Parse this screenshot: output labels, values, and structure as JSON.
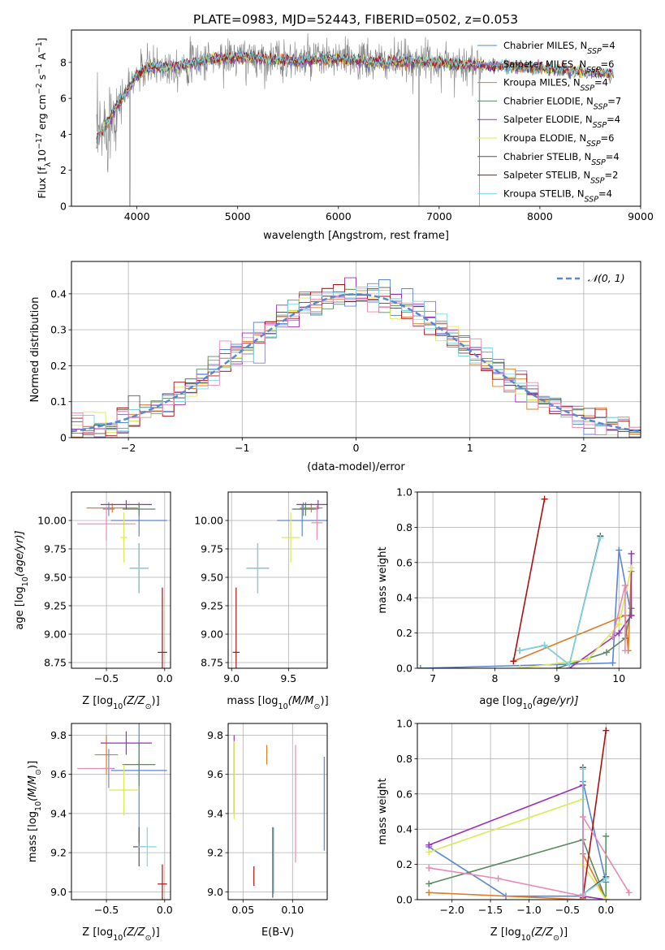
{
  "figure": {
    "title": "PLATE=0983, MJD=52443, FIBERID=0502, z=0.053"
  },
  "colors": {
    "Chabrier MILES": "#5b86d4",
    "Salpeter MILES": "#8b7fc8",
    "Kroupa MILES": "#e07b24",
    "Chabrier ELODIE": "#5a8a60",
    "Salpeter ELODIE": "#9a30b5",
    "Kroupa ELODIE": "#d9ea55",
    "Chabrier STELIB": "#555555",
    "Salpeter STELIB": "#aa1111",
    "Kroupa STELIB": "#7ed7e0",
    "data": "#808080",
    "extra_pink": "#e88ab6",
    "gauss": "#5b86d4"
  },
  "chart_data": [
    {
      "id": "spectrum",
      "type": "line",
      "xlabel": "wavelength [Angstrom, rest frame]",
      "ylabel_prefix": "Flux [f",
      "ylabel_sub": "λ",
      "ylabel_mid": "10",
      "ylabel_sup1": "−17",
      "ylabel_tail": " erg cm",
      "ylabel_sup2": "−2",
      "ylabel_tail2": " s",
      "ylabel_sup3": "−1",
      "ylabel_tail3": " A",
      "ylabel_sup4": "−1",
      "ylabel_end": "]",
      "xlim": [
        3350,
        9000
      ],
      "ylim": [
        0,
        9.8
      ],
      "xticks": [
        4000,
        5000,
        6000,
        7000,
        8000,
        9000
      ],
      "yticks": [
        0,
        2,
        4,
        6,
        8
      ],
      "legend": [
        {
          "name": "Chabrier MILES",
          "nssp": "4"
        },
        {
          "name": "Salpeter MILES",
          "nssp": "6"
        },
        {
          "name": "Kroupa MILES",
          "nssp": "4"
        },
        {
          "name": "Chabrier ELODIE",
          "nssp": "7"
        },
        {
          "name": "Salpeter ELODIE",
          "nssp": "4"
        },
        {
          "name": "Kroupa ELODIE",
          "nssp": "6"
        },
        {
          "name": "Chabrier STELIB",
          "nssp": "4"
        },
        {
          "name": "Salpeter STELIB",
          "nssp": "2"
        },
        {
          "name": "Kroupa STELIB",
          "nssp": "4"
        }
      ],
      "legend_sub": "SSP",
      "legend_placement": "right",
      "continuum": {
        "x": [
          3600,
          3700,
          3800,
          3900,
          4000,
          4100,
          4300,
          4500,
          4700,
          5000,
          5300,
          5600,
          6000,
          6400,
          6800,
          7000,
          7300,
          7600,
          8000,
          8400,
          8700
        ],
        "y": [
          3.7,
          4.6,
          5.6,
          6.4,
          7.3,
          7.7,
          7.8,
          7.9,
          8.2,
          8.3,
          8.2,
          8.1,
          8.2,
          8.0,
          8.1,
          8.0,
          7.9,
          7.8,
          7.7,
          7.5,
          7.4
        ]
      },
      "data_xrange": [
        3600,
        7420
      ],
      "model_xrange": [
        3600,
        8730
      ]
    },
    {
      "id": "residuals",
      "type": "histogram",
      "xlabel": "(data-model)/error",
      "ylabel": "Normed distribution",
      "xlim": [
        -2.5,
        2.5
      ],
      "ylim": [
        0,
        0.49
      ],
      "xticks": [
        -2,
        -1,
        0,
        1,
        2
      ],
      "xtick_labels": [
        "−2",
        "−1",
        "0",
        "1",
        "2"
      ],
      "yticks": [
        0.0,
        0.1,
        0.2,
        0.3,
        0.4
      ],
      "legend": "𝒩(0, 1)",
      "legend_placement": "top-right",
      "bins": 50
    },
    {
      "id": "age_vs_Z",
      "type": "errorbar",
      "xlabel_main": "Z [log",
      "xlabel_sub": "10",
      "xlabel_arg": "(Z/Z",
      "xlabel_sun": "⊙",
      "xlabel_end": ")]",
      "ylabel_main": "age  [log",
      "ylabel_sub": "10",
      "ylabel_arg": "(age/yr)]",
      "xlim": [
        -0.8,
        0.05
      ],
      "ylim": [
        8.7,
        10.25
      ],
      "xticks": [
        -0.5,
        0.0
      ],
      "xtick_labels": [
        "−0.5",
        "0.0"
      ],
      "yticks": [
        8.75,
        9.0,
        9.25,
        9.5,
        9.75,
        10.0
      ],
      "ytick_labels": [
        "8.75",
        "9.00",
        "9.25",
        "9.50",
        "9.75",
        "10.00"
      ],
      "points": [
        {
          "series": "Chabrier MILES",
          "x": -0.22,
          "xerr": 0.24,
          "y": 10.0,
          "yerr": 0.14
        },
        {
          "series": "Salpeter MILES",
          "x": -0.48,
          "xerr": 0.05,
          "y": 10.1,
          "yerr": 0.06
        },
        {
          "series": "Kroupa MILES",
          "x": -0.45,
          "xerr": 0.22,
          "y": 10.11,
          "yerr": 0.04
        },
        {
          "series": "Chabrier ELODIE",
          "x": -0.22,
          "xerr": 0.14,
          "y": 10.1,
          "yerr": 0.06
        },
        {
          "series": "Salpeter ELODIE",
          "x": -0.33,
          "xerr": 0.22,
          "y": 10.14,
          "yerr": 0.04
        },
        {
          "series": "Kroupa ELODIE",
          "x": -0.35,
          "xerr": 0.03,
          "y": 9.85,
          "yerr": 0.22
        },
        {
          "series": "Chabrier STELIB",
          "x": -0.22,
          "xerr": 0.08,
          "y": 9.58,
          "yerr": 0.22
        },
        {
          "series": "Salpeter STELIB",
          "x": -0.02,
          "xerr": 0.04,
          "y": 8.84,
          "yerr": 0.57
        },
        {
          "series": "Kroupa STELIB",
          "x": -0.22,
          "xerr": 0.08,
          "y": 9.58,
          "yerr": 0.22
        },
        {
          "series": "extra_pink",
          "x": -0.5,
          "xerr": 0.25,
          "y": 9.97,
          "yerr": 0.15
        }
      ]
    },
    {
      "id": "age_vs_mass",
      "type": "errorbar",
      "xlabel_main": "mass [log",
      "xlabel_sub": "10",
      "xlabel_arg": "(M/M",
      "xlabel_sun": "⊙",
      "xlabel_end": ")]",
      "xlim": [
        8.97,
        9.84
      ],
      "ylim": [
        8.7,
        10.25
      ],
      "xticks": [
        9.0,
        9.5
      ],
      "xtick_labels": [
        "9.0",
        "9.5"
      ],
      "yticks": [
        8.75,
        9.0,
        9.25,
        9.5,
        9.75,
        10.0
      ],
      "ytick_labels": [
        "8.75",
        "9.00",
        "9.25",
        "9.50",
        "9.75",
        "10.00"
      ],
      "points": [
        {
          "series": "Chabrier MILES",
          "x": 9.62,
          "xerr": 0.22,
          "y": 10.0,
          "yerr": 0.14
        },
        {
          "series": "Salpeter MILES",
          "x": 9.63,
          "xerr": 0.1,
          "y": 10.1,
          "yerr": 0.06
        },
        {
          "series": "Kroupa MILES",
          "x": 9.7,
          "xerr": 0.1,
          "y": 10.11,
          "yerr": 0.04
        },
        {
          "series": "Chabrier ELODIE",
          "x": 9.65,
          "xerr": 0.11,
          "y": 10.1,
          "yerr": 0.06
        },
        {
          "series": "Salpeter ELODIE",
          "x": 9.76,
          "xerr": 0.19,
          "y": 10.14,
          "yerr": 0.04
        },
        {
          "series": "Kroupa ELODIE",
          "x": 9.52,
          "xerr": 0.08,
          "y": 9.85,
          "yerr": 0.22
        },
        {
          "series": "Chabrier STELIB",
          "x": 9.23,
          "xerr": 0.1,
          "y": 9.58,
          "yerr": 0.22
        },
        {
          "series": "Salpeter STELIB",
          "x": 9.04,
          "xerr": 0.03,
          "y": 8.84,
          "yerr": 0.57
        },
        {
          "series": "Kroupa STELIB",
          "x": 9.23,
          "xerr": 0.1,
          "y": 9.58,
          "yerr": 0.22
        },
        {
          "series": "extra_pink",
          "x": 9.75,
          "xerr": 0.05,
          "y": 9.98,
          "yerr": 0.15
        }
      ]
    },
    {
      "id": "mass_weight_vs_age",
      "type": "line",
      "xlabel_main": "age  [log",
      "xlabel_sub": "10",
      "xlabel_arg": "(age/yr)]",
      "ylabel": "mass weight",
      "xlim": [
        6.75,
        10.35
      ],
      "ylim": [
        0,
        1.0
      ],
      "xticks": [
        7,
        8,
        9,
        10
      ],
      "yticks": [
        0.0,
        0.2,
        0.4,
        0.6,
        0.8,
        1.0
      ],
      "ytick_labels": [
        "0.0",
        "0.2",
        "0.4",
        "0.6",
        "0.8",
        "1.0"
      ],
      "series": [
        {
          "name": "Chabrier MILES",
          "x": [
            6.8,
            9.9,
            10.0,
            10.2
          ],
          "y": [
            0.0,
            0.03,
            0.67,
            0.3
          ]
        },
        {
          "name": "Kroupa MILES",
          "x": [
            8.3,
            10.1,
            10.15,
            10.2
          ],
          "y": [
            0.04,
            0.3,
            0.1,
            0.55
          ]
        },
        {
          "name": "Chabrier ELODIE",
          "x": [
            9.0,
            9.8,
            10.1,
            10.2
          ],
          "y": [
            0.0,
            0.09,
            0.17,
            0.34
          ]
        },
        {
          "name": "Salpeter ELODIE",
          "x": [
            9.2,
            10.0,
            10.2,
            10.2
          ],
          "y": [
            0.0,
            0.2,
            0.3,
            0.65
          ]
        },
        {
          "name": "Kroupa ELODIE",
          "x": [
            8.4,
            9.5,
            10.0,
            10.2
          ],
          "y": [
            0.0,
            0.05,
            0.25,
            0.57
          ]
        },
        {
          "name": "Chabrier STELIB",
          "x": [
            8.4,
            8.8,
            9.2,
            9.7
          ],
          "y": [
            0.1,
            0.13,
            0.02,
            0.75
          ]
        },
        {
          "name": "Salpeter STELIB",
          "x": [
            8.3,
            8.8
          ],
          "y": [
            0.04,
            0.96
          ]
        },
        {
          "name": "Kroupa STELIB",
          "x": [
            8.4,
            8.8,
            9.2,
            9.7
          ],
          "y": [
            0.1,
            0.13,
            0.02,
            0.74
          ]
        },
        {
          "name": "extra_pink",
          "x": [
            9.9,
            10.1,
            10.1
          ],
          "y": [
            0.18,
            0.47,
            0.1
          ]
        }
      ]
    },
    {
      "id": "mass_vs_Z",
      "type": "errorbar",
      "xlabel_main": "Z [log",
      "xlabel_sub": "10",
      "xlabel_arg": "(Z/Z",
      "xlabel_sun": "⊙",
      "xlabel_end": ")]",
      "ylabel_main": "mass [log",
      "ylabel_sub": "10",
      "ylabel_arg": "(M/M",
      "ylabel_sun": "⊙",
      "ylabel_end": ")]",
      "xlim": [
        -0.8,
        0.05
      ],
      "ylim": [
        8.96,
        9.86
      ],
      "xticks": [
        -0.5,
        0.0
      ],
      "xtick_labels": [
        "−0.5",
        "0.0"
      ],
      "yticks": [
        9.0,
        9.2,
        9.4,
        9.6,
        9.8
      ],
      "ytick_labels": [
        "9.0",
        "9.2",
        "9.4",
        "9.6",
        "9.8"
      ],
      "points": [
        {
          "series": "Chabrier MILES",
          "x": -0.22,
          "xerr": 0.24,
          "y": 9.62,
          "yerr": 0.37
        },
        {
          "series": "Salpeter MILES",
          "x": -0.48,
          "xerr": 0.05,
          "y": 9.63,
          "yerr": 0.1
        },
        {
          "series": "Kroupa MILES",
          "x": -0.5,
          "xerr": 0.1,
          "y": 9.7,
          "yerr": 0.1
        },
        {
          "series": "Chabrier ELODIE",
          "x": -0.22,
          "xerr": 0.14,
          "y": 9.65,
          "yerr": 0.11
        },
        {
          "series": "Salpeter ELODIE",
          "x": -0.33,
          "xerr": 0.22,
          "y": 9.76,
          "yerr": 0.06
        },
        {
          "series": "Kroupa ELODIE",
          "x": -0.35,
          "xerr": 0.13,
          "y": 9.52,
          "yerr": 0.13
        },
        {
          "series": "Chabrier STELIB",
          "x": -0.22,
          "xerr": 0.05,
          "y": 9.23,
          "yerr": 0.1
        },
        {
          "series": "Salpeter STELIB",
          "x": -0.02,
          "xerr": 0.04,
          "y": 9.04,
          "yerr": 0.1
        },
        {
          "series": "Kroupa STELIB",
          "x": -0.15,
          "xerr": 0.08,
          "y": 9.23,
          "yerr": 0.1
        },
        {
          "series": "extra_pink",
          "x": -0.6,
          "xerr": 0.15,
          "y": 9.63,
          "yerr": 0.0
        }
      ]
    },
    {
      "id": "mass_vs_EBV",
      "type": "errorbar",
      "xlabel": "E(B-V)",
      "xlim": [
        0.035,
        0.135
      ],
      "ylim": [
        8.96,
        9.86
      ],
      "xticks": [
        0.05,
        0.1
      ],
      "xtick_labels": [
        "0.05",
        "0.10"
      ],
      "yticks": [
        9.0,
        9.2,
        9.4,
        9.6,
        9.8
      ],
      "ytick_labels": [
        "9.0",
        "9.2",
        "9.4",
        "9.6",
        "9.8"
      ],
      "points": [
        {
          "series": "Chabrier MILES",
          "x": 0.132,
          "y": 9.45,
          "yerr": 0.24
        },
        {
          "series": "Salpeter ELODIE",
          "x": 0.041,
          "y": 9.6,
          "yerr": 0.2
        },
        {
          "series": "Kroupa ELODIE",
          "x": 0.041,
          "y": 9.57,
          "yerr": 0.2
        },
        {
          "series": "Kroupa MILES",
          "x": 0.074,
          "y": 9.7,
          "yerr": 0.05
        },
        {
          "series": "extra_pink",
          "x": 0.103,
          "y": 9.45,
          "yerr": 0.3
        },
        {
          "series": "Salpeter STELIB",
          "x": 0.061,
          "y": 9.08,
          "yerr": 0.05
        },
        {
          "series": "Chabrier STELIB",
          "x": 0.08,
          "y": 9.15,
          "yerr": 0.18
        },
        {
          "series": "Kroupa STELIB",
          "x": 0.081,
          "y": 9.16,
          "yerr": 0.17
        }
      ]
    },
    {
      "id": "mass_weight_vs_Z",
      "type": "line",
      "xlabel_main": "Z [log",
      "xlabel_sub": "10",
      "xlabel_arg": "(Z/Z",
      "xlabel_sun": "⊙",
      "xlabel_end": ")]",
      "ylabel": "mass weight",
      "xlim": [
        -2.45,
        0.45
      ],
      "ylim": [
        0,
        1.0
      ],
      "xticks": [
        -2.0,
        -1.5,
        -1.0,
        -0.5,
        0.0
      ],
      "xtick_labels": [
        "−2.0",
        "−1.5",
        "−1.0",
        "−0.5",
        "0.0"
      ],
      "yticks": [
        0.0,
        0.2,
        0.4,
        0.6,
        0.8,
        1.0
      ],
      "ytick_labels": [
        "0.0",
        "0.2",
        "0.4",
        "0.6",
        "0.8",
        "1.0"
      ],
      "series": [
        {
          "name": "Chabrier MILES",
          "x": [
            -2.3,
            -1.3,
            -0.3,
            -0.3,
            0.0
          ],
          "y": [
            0.3,
            0.02,
            0.02,
            0.67,
            0.1
          ]
        },
        {
          "name": "Kroupa MILES",
          "x": [
            -2.3,
            -0.3,
            -0.3,
            0.0
          ],
          "y": [
            0.04,
            0.0,
            0.26,
            0.0
          ]
        },
        {
          "name": "Chabrier ELODIE",
          "x": [
            -2.3,
            -0.3,
            0.0,
            0.0
          ],
          "y": [
            0.09,
            0.34,
            0.0,
            0.36
          ]
        },
        {
          "name": "Salpeter ELODIE",
          "x": [
            -2.3,
            -0.3,
            -0.3,
            0.0
          ],
          "y": [
            0.31,
            0.65,
            0.02,
            0.0
          ]
        },
        {
          "name": "Kroupa ELODIE",
          "x": [
            -2.3,
            -0.3,
            -0.3,
            0.0
          ],
          "y": [
            0.27,
            0.57,
            0.2,
            0.0
          ]
        },
        {
          "name": "Chabrier STELIB",
          "x": [
            -0.3,
            -0.3,
            0.0
          ],
          "y": [
            0.75,
            0.03,
            0.13
          ]
        },
        {
          "name": "Salpeter STELIB",
          "x": [
            -0.3,
            0.0
          ],
          "y": [
            0.01,
            0.96
          ]
        },
        {
          "name": "Kroupa STELIB",
          "x": [
            -0.3,
            -0.3,
            0.0
          ],
          "y": [
            0.74,
            0.03,
            0.12
          ]
        },
        {
          "name": "extra_pink",
          "x": [
            -2.3,
            -1.4,
            -0.3,
            -0.3,
            0.3
          ],
          "y": [
            0.18,
            0.12,
            0.02,
            0.47,
            0.04
          ]
        }
      ]
    }
  ]
}
